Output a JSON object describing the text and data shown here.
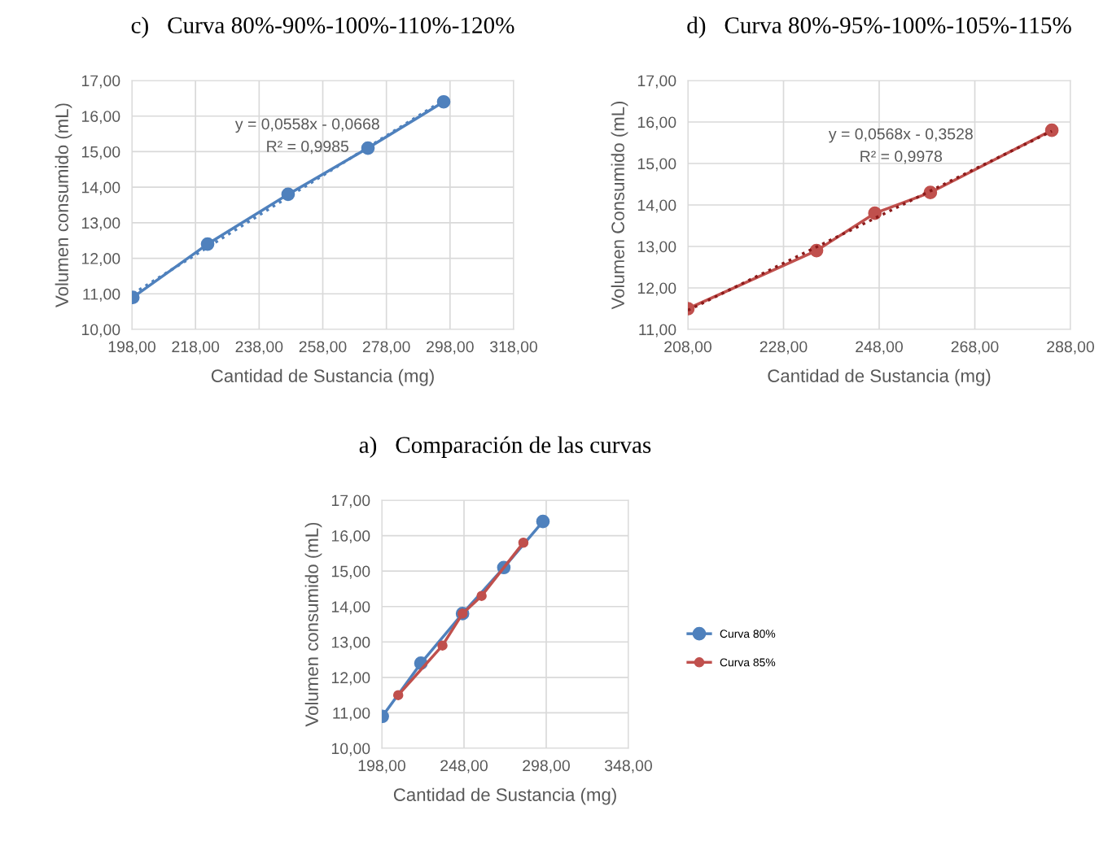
{
  "chart_data": [
    {
      "type": "scatter",
      "title": "c)   Curva 80%-90%-100%-110%-120%",
      "xlabel": "Cantidad de Sustancia (mg)",
      "ylabel": "Volumen consumido (mL)",
      "xlim": [
        198,
        318
      ],
      "xticks": [
        {
          "value": 198,
          "label": "198,00"
        },
        {
          "value": 218,
          "label": "218,00"
        },
        {
          "value": 238,
          "label": "238,00"
        },
        {
          "value": 258,
          "label": "258,00"
        },
        {
          "value": 278,
          "label": "278,00"
        },
        {
          "value": 298,
          "label": "298,00"
        },
        {
          "value": 318,
          "label": "318,00"
        }
      ],
      "ylim": [
        10,
        17
      ],
      "yticks": [
        {
          "value": 10,
          "label": "10,00"
        },
        {
          "value": 11,
          "label": "11,00"
        },
        {
          "value": 12,
          "label": "12,00"
        },
        {
          "value": 13,
          "label": "13,00"
        },
        {
          "value": 14,
          "label": "14,00"
        },
        {
          "value": 15,
          "label": "15,00"
        },
        {
          "value": 16,
          "label": "16,00"
        },
        {
          "value": 17,
          "label": "17,00"
        }
      ],
      "grid": true,
      "marker": "circle",
      "annotations": [
        "y = 0,0558x - 0,0668",
        "R² = 0,9985"
      ],
      "series": [
        {
          "type": "line",
          "color": "#4f81bd",
          "x": [
            198.3,
            221.8,
            247.1,
            272.2,
            296.0
          ],
          "values": [
            10.9,
            12.4,
            13.8,
            15.1,
            16.4
          ],
          "line_style": "solid"
        },
        {
          "type": "line",
          "color": "#4f81bd",
          "x": [
            198.3,
            296.0
          ],
          "values": [
            11.0,
            16.45
          ],
          "line_style": "dotted",
          "marker": "none"
        }
      ]
    },
    {
      "type": "scatter",
      "title": "d)   Curva 80%-95%-100%-105%-115%",
      "xlabel": "Cantidad de Sustancia (mg)",
      "ylabel": "Volumen Consumido (mL)",
      "xlim": [
        208,
        288
      ],
      "xticks": [
        {
          "value": 208,
          "label": "208,00"
        },
        {
          "value": 228,
          "label": "228,00"
        },
        {
          "value": 248,
          "label": "248,00"
        },
        {
          "value": 268,
          "label": "268,00"
        },
        {
          "value": 288,
          "label": "288,00"
        }
      ],
      "ylim": [
        11,
        17
      ],
      "yticks": [
        {
          "value": 11,
          "label": "11,00"
        },
        {
          "value": 12,
          "label": "12,00"
        },
        {
          "value": 13,
          "label": "13,00"
        },
        {
          "value": 14,
          "label": "14,00"
        },
        {
          "value": 15,
          "label": "15,00"
        },
        {
          "value": 16,
          "label": "16,00"
        },
        {
          "value": 17,
          "label": "17,00"
        }
      ],
      "grid": true,
      "marker": "circle",
      "annotations": [
        "y = 0,0568x - 0,3528",
        "R² = 0,9978"
      ],
      "series": [
        {
          "type": "line",
          "color": "#c0504d",
          "x": [
            208.0,
            234.9,
            247.1,
            258.7,
            284.1
          ],
          "values": [
            11.5,
            12.9,
            13.8,
            14.3,
            15.8
          ],
          "line_style": "solid"
        },
        {
          "type": "line",
          "color": "#8b1a1a",
          "x": [
            208.0,
            284.1
          ],
          "values": [
            11.46,
            15.78
          ],
          "line_style": "dotted",
          "marker": "none"
        }
      ]
    },
    {
      "type": "line",
      "title": "a)   Comparación de las curvas",
      "xlabel": "Cantidad de Sustancia (mg)",
      "ylabel": "Volumen consumido (mL)",
      "xlim": [
        198,
        348
      ],
      "xticks": [
        {
          "value": 198,
          "label": "198,00"
        },
        {
          "value": 248,
          "label": "248,00"
        },
        {
          "value": 298,
          "label": "298,00"
        },
        {
          "value": 348,
          "label": "348,00"
        }
      ],
      "ylim": [
        10,
        17
      ],
      "yticks": [
        {
          "value": 10,
          "label": "10,00"
        },
        {
          "value": 11,
          "label": "11,00"
        },
        {
          "value": 12,
          "label": "12,00"
        },
        {
          "value": 13,
          "label": "13,00"
        },
        {
          "value": 14,
          "label": "14,00"
        },
        {
          "value": 15,
          "label": "15,00"
        },
        {
          "value": 16,
          "label": "16,00"
        },
        {
          "value": 17,
          "label": "17,00"
        }
      ],
      "grid": true,
      "marker": "circle",
      "legend": "right",
      "series": [
        {
          "name": "Curva 80%",
          "color": "#4f81bd",
          "x": [
            198.3,
            221.8,
            247.1,
            272.2,
            296.0
          ],
          "values": [
            10.9,
            12.4,
            13.8,
            15.1,
            16.4
          ]
        },
        {
          "name": "Curva 85%",
          "color": "#c0504d",
          "x": [
            208.0,
            234.9,
            247.1,
            258.7,
            284.1
          ],
          "values": [
            11.5,
            12.9,
            13.8,
            14.3,
            15.8
          ]
        }
      ]
    }
  ]
}
